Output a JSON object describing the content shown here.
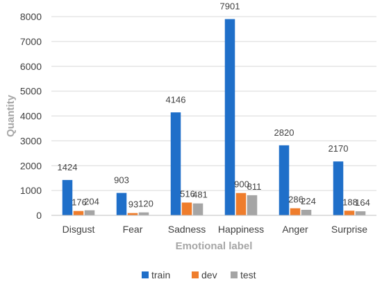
{
  "chart_data": {
    "type": "bar",
    "title": "",
    "xlabel": "Emotional label",
    "ylabel": "Quantity",
    "categories": [
      "Disgust",
      "Fear",
      "Sadness",
      "Happiness",
      "Anger",
      "Surprise"
    ],
    "series": [
      {
        "name": "train",
        "color": "#1f6fc9",
        "values": [
          1424,
          903,
          4146,
          7901,
          2820,
          2170
        ]
      },
      {
        "name": "dev",
        "color": "#ef7d2c",
        "values": [
          176,
          93,
          516,
          900,
          286,
          188
        ]
      },
      {
        "name": "test",
        "color": "#a5a5a5",
        "values": [
          204,
          120,
          481,
          811,
          224,
          164
        ]
      }
    ],
    "ylim": [
      0,
      8000
    ],
    "yticks": [
      0,
      1000,
      2000,
      3000,
      4000,
      5000,
      6000,
      7000,
      8000
    ],
    "grid": true,
    "legend_position": "bottom",
    "data_labels": true
  }
}
